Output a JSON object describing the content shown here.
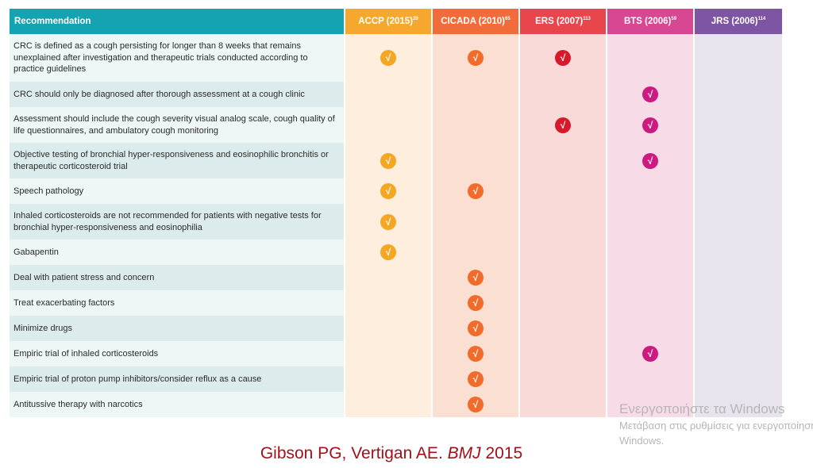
{
  "table": {
    "header": {
      "recommendation": "Recommendation",
      "guidelines": [
        {
          "key": "accp",
          "name": "ACCP (2015)",
          "ref": "20",
          "header_color": "#f6a82e",
          "body_color": "#fdeedd",
          "check_color": "#f5a623"
        },
        {
          "key": "cicada",
          "name": "CICADA (2010)",
          "ref": "65",
          "header_color": "#f26b3a",
          "body_color": "#fcdfd3",
          "check_color": "#f26b2a"
        },
        {
          "key": "ers",
          "name": "ERS (2007)",
          "ref": "113",
          "header_color": "#e8454d",
          "body_color": "#fad9d9",
          "check_color": "#d7192b"
        },
        {
          "key": "bts",
          "name": "BTS (2006)",
          "ref": "59",
          "header_color": "#d74792",
          "body_color": "#f7dbe7",
          "check_color": "#cc1a80"
        },
        {
          "key": "jrs",
          "name": "JRS (2006)",
          "ref": "114",
          "header_color": "#7e55a3",
          "body_color": "#e7e4ee",
          "check_color": "#7e55a3"
        }
      ]
    },
    "check_symbol": "√",
    "row_colors": [
      "#eef6f6",
      "#dcecec"
    ],
    "rows": [
      {
        "text": "CRC is defined as a cough persisting for longer than 8 weeks that remains unexplained after investigation and therapeutic trials conducted according to practice guidelines",
        "marks": [
          true,
          true,
          true,
          false,
          false
        ]
      },
      {
        "text": "CRC should only be diagnosed after thorough assessment at a cough clinic",
        "marks": [
          false,
          false,
          false,
          true,
          false
        ]
      },
      {
        "text": "Assessment should include the cough severity visual analog scale, cough quality of life questionnaires, and ambulatory cough monitoring",
        "marks": [
          false,
          false,
          true,
          true,
          false
        ]
      },
      {
        "text": "Objective testing of bronchial hyper-responsiveness and eosinophilic bronchitis or therapeutic corticosteroid trial",
        "marks": [
          true,
          false,
          false,
          true,
          false
        ]
      },
      {
        "text": "Speech pathology",
        "marks": [
          true,
          true,
          false,
          false,
          false
        ]
      },
      {
        "text": "Inhaled corticosteroids are not recommended for patients with negative tests for bronchial hyper-responsiveness and eosinophilia",
        "marks": [
          true,
          false,
          false,
          false,
          false
        ]
      },
      {
        "text": "Gabapentin",
        "marks": [
          true,
          false,
          false,
          false,
          false
        ]
      },
      {
        "text": "Deal with patient stress and concern",
        "marks": [
          false,
          true,
          false,
          false,
          false
        ]
      },
      {
        "text": "Treat exacerbating factors",
        "marks": [
          false,
          true,
          false,
          false,
          false
        ]
      },
      {
        "text": "Minimize drugs",
        "marks": [
          false,
          true,
          false,
          false,
          false
        ]
      },
      {
        "text": "Empiric trial of inhaled corticosteroids",
        "marks": [
          false,
          true,
          false,
          true,
          false
        ]
      },
      {
        "text": "Empiric trial of proton pump inhibitors/consider reflux as a cause",
        "marks": [
          false,
          true,
          false,
          false,
          false
        ]
      },
      {
        "text": "Antitussive therapy with narcotics",
        "marks": [
          false,
          true,
          false,
          false,
          false
        ]
      }
    ]
  },
  "watermark": {
    "title": "Ενεργοποιήστε τα Windows",
    "line1": "Μετάβαση στις ρυθμίσεις για ενεργοποίηση",
    "line2": "Windows."
  },
  "citation": {
    "authors": "Gibson PG, Vertigan AE. ",
    "journal": "BMJ",
    "year": " 2015"
  }
}
